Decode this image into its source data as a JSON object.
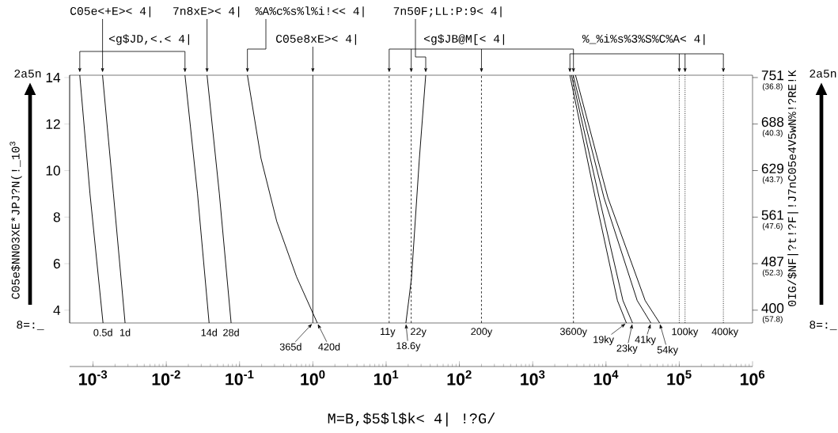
{
  "chart_data": {
    "type": "line",
    "log": "x",
    "xlabel": "M=B,$5$l$k< 4| !?G/",
    "ylabel": "C05e$NN03XE*JPJ?N(!_10$^{3}$",
    "y2label": "0IG/$NF|?t!?F|!J7nC05e4V5wN%!?RE!K",
    "xlim": [
      0.00048,
      1000000
    ],
    "ylim": [
      3.45,
      14.1
    ],
    "xticks": [
      {
        "value": 0.001,
        "label": "10$^{-3}$"
      },
      {
        "value": 0.01,
        "label": "10$^{-2}$"
      },
      {
        "value": 0.1,
        "label": "10$^{-1}$"
      },
      {
        "value": 1,
        "label": "10$^{0}$"
      },
      {
        "value": 10,
        "label": "10$^{1}$"
      },
      {
        "value": 100,
        "label": "10$^{2}$"
      },
      {
        "value": 1000,
        "label": "10$^{3}$"
      },
      {
        "value": 10000,
        "label": "10$^{4}$"
      },
      {
        "value": 100000,
        "label": "10$^{5}$"
      },
      {
        "value": 1000000,
        "label": "10$^{6}$"
      }
    ],
    "yticks": [
      4,
      6,
      8,
      10,
      12,
      14
    ],
    "series": [
      {
        "color": "#000000",
        "x": [
          0.00137,
          0.00091,
          0.00066
        ],
        "values": [
          3.45,
          9,
          14.1
        ]
      },
      {
        "color": "#000000",
        "x": [
          0.00274,
          0.0019,
          0.00135
        ],
        "values": [
          3.45,
          9,
          14.1
        ]
      },
      {
        "color": "#000000",
        "x": [
          0.0384,
          0.0267,
          0.018
        ],
        "values": [
          3.45,
          9,
          14.1
        ]
      },
      {
        "color": "#000000",
        "x": [
          0.0767,
          0.053,
          0.036
        ],
        "values": [
          3.45,
          9,
          14.1
        ]
      },
      {
        "color": "#000000",
        "x": [
          1.15,
          0.6,
          0.322,
          0.196,
          0.128
        ],
        "values": [
          3.45,
          5.43,
          7.81,
          10.53,
          14.1
        ]
      },
      {
        "color": "#000000",
        "x": [
          18.6,
          20.5,
          22.2,
          28.4,
          34.7
        ],
        "values": [
          3.45,
          4.5,
          5.4,
          10.5,
          14.1
        ]
      },
      {
        "color": "#000000",
        "x": [
          19000,
          14350,
          7150,
          3220
        ],
        "values": [
          3.45,
          4.41,
          8.83,
          14.1
        ]
      },
      {
        "color": "#000000",
        "x": [
          23000,
          17060,
          8090,
          3390
        ],
        "values": [
          3.45,
          4.41,
          8.83,
          14.1
        ]
      },
      {
        "color": "#000000",
        "x": [
          41000,
          26700,
          9400,
          3560
        ],
        "values": [
          3.45,
          4.41,
          8.83,
          14.1
        ]
      },
      {
        "color": "#000000",
        "x": [
          54000,
          34300,
          10640,
          3840
        ],
        "values": [
          3.45,
          4.41,
          8.83,
          14.1
        ]
      }
    ],
    "ref_lines": [
      {
        "axis": "x",
        "value": 1,
        "label": "365d",
        "line_style": "solid"
      },
      {
        "axis": "x",
        "value": 11,
        "label": "11y",
        "line_style": "dashed"
      },
      {
        "axis": "x",
        "value": 22,
        "label": "22y",
        "line_style": "dashed"
      },
      {
        "axis": "x",
        "value": 200,
        "label": "200y",
        "line_style": "dashed"
      },
      {
        "axis": "x",
        "value": 3600,
        "label": "3600y",
        "line_style": "dashed"
      },
      {
        "axis": "x",
        "value": 100000,
        "label": "100ky",
        "line_style": "dotted"
      },
      {
        "axis": "x",
        "value": 120000,
        "label": null,
        "line_style": "dotted"
      },
      {
        "axis": "x",
        "value": 400000,
        "label": "400ky",
        "line_style": "dotted"
      }
    ],
    "annotations": [
      "C05e<+E>< 4|",
      "7n8xE>< 4|",
      "%A%c%s%l%i!<< 4|",
      "7n50F;LL:P:9< 4|",
      "<g$JD,<.< 4|",
      "C05e8xE>< 4|",
      "<g$JB@M[< 4|",
      "%_%i%s%3%S%C%A< 4|",
      {
        "text": "0.5d",
        "x": 0.00137,
        "y": 3.45
      },
      {
        "text": "1d",
        "x": 0.00274,
        "y": 3.45
      },
      {
        "text": "14d",
        "x": 0.0384,
        "y": 3.45
      },
      {
        "text": "28d",
        "x": 0.0767,
        "y": 3.45
      },
      {
        "text": "420d",
        "x": 1.15,
        "y": 3.45
      },
      {
        "text": "18.6y",
        "x": 18.6,
        "y": 3.45
      },
      {
        "text": "19ky",
        "x": 19000,
        "y": 3.45
      },
      {
        "text": "23ky",
        "x": 23000,
        "y": 3.45
      },
      {
        "text": "41ky",
        "x": 41000,
        "y": 3.45
      },
      {
        "text": "54ky",
        "x": 54000,
        "y": 3.45
      },
      "2a5n",
      "8=:_",
      "2a5n",
      "8=:_",
      "400",
      "(57.8)",
      "487",
      "(52.3)",
      "561",
      "(47.6)",
      "629",
      "(43.7)",
      "688",
      "(40.3)",
      "751",
      "(36.8)"
    ]
  }
}
